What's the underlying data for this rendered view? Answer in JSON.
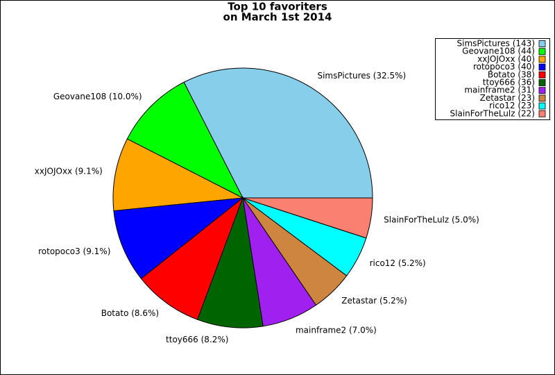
{
  "chart_data": {
    "type": "pie",
    "title": [
      "Top 10 favoriters",
      "on March 1st 2014"
    ],
    "values": [
      143,
      44,
      40,
      40,
      38,
      36,
      31,
      23,
      23,
      22
    ],
    "labels": [
      "SimsPictures (32.5%)",
      "Geovane108 (10.0%)",
      "xxJOJOxx (9.1%)",
      "rotopoco3 (9.1%)",
      "Botato (8.6%)",
      "ttoy666 (8.2%)",
      "mainframe2 (7.0%)",
      "Zetastar (5.2%)",
      "rico12 (5.2%)",
      "SlainForTheLulz (5.0%)"
    ],
    "legend": [
      "SimsPictures (143)",
      "Geovane108 (44)",
      "xxJOJOxx (40)",
      "rotopoco3 (40)",
      "Botato (38)",
      "ttoy666 (36)",
      "mainframe2 (31)",
      "Zetastar (23)",
      "rico12 (23)",
      "SlainForTheLulz (22)"
    ],
    "colors": [
      "#87ceeb",
      "#00ff00",
      "#ffa500",
      "#0000ff",
      "#ff0000",
      "#006400",
      "#a020f0",
      "#cd853f",
      "#00ffff",
      "#fa8072"
    ],
    "legend_position": "upper right"
  }
}
